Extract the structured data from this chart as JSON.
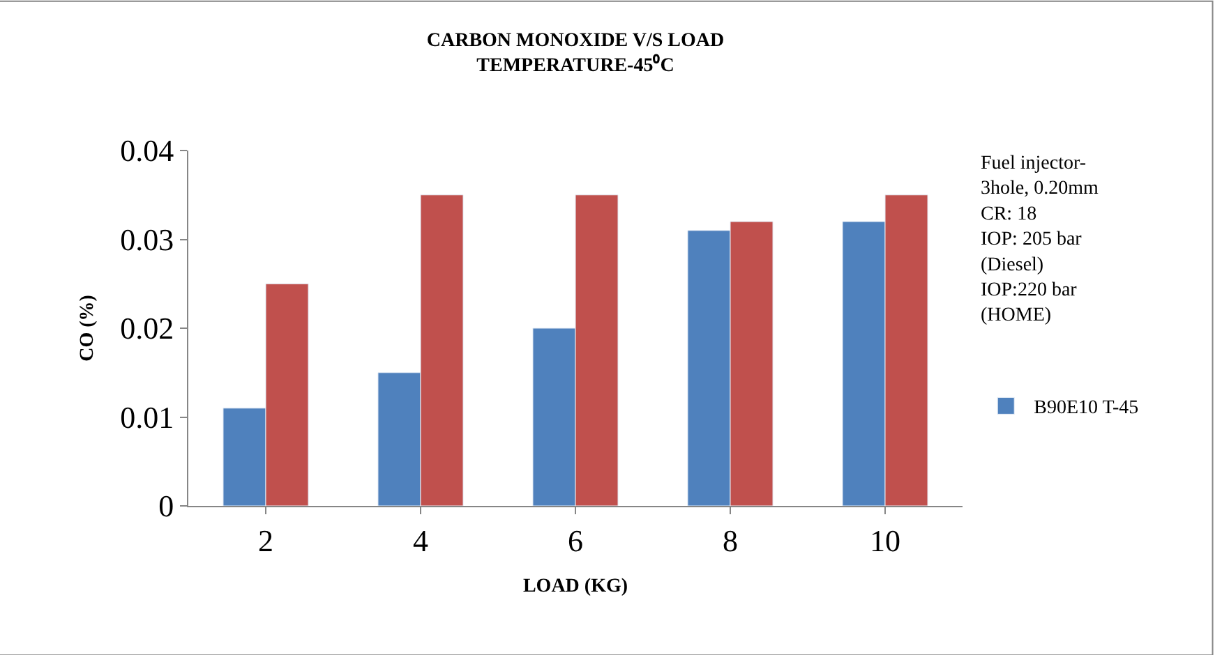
{
  "chart_data": {
    "type": "bar",
    "title": "CARBON MONOXIDE V/S LOAD TEMPERATURE-45⁰C",
    "xlabel": "LOAD (KG)",
    "ylabel": "CO (%)",
    "categories": [
      "2",
      "4",
      "6",
      "8",
      "10"
    ],
    "series": [
      {
        "name": "B90E10 T-45",
        "color": "#4f81bd",
        "values": [
          0.011,
          0.015,
          0.02,
          0.031,
          0.032
        ]
      },
      {
        "color": "#c0504d",
        "values": [
          0.025,
          0.035,
          0.035,
          0.032,
          0.035
        ]
      }
    ],
    "ylim": [
      0,
      0.04
    ],
    "yticks": [
      0,
      0.01,
      0.02,
      0.03,
      0.04
    ],
    "annotations": [
      "Fuel injector-3hole, 0.20mm",
      "CR: 18",
      "IOP: 205 bar (Diesel)",
      "IOP:220 bar (HOME)"
    ],
    "legend": "right"
  }
}
